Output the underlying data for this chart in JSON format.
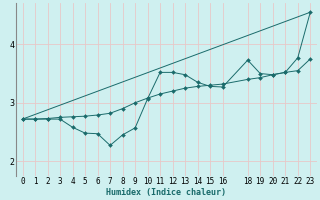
{
  "title": "",
  "xlabel": "Humidex (Indice chaleur)",
  "bg_color": "#cff0f0",
  "line_color": "#1a6b6b",
  "grid_color": "#e8c8c8",
  "xlim": [
    -0.5,
    23.5
  ],
  "ylim": [
    1.75,
    4.7
  ],
  "xticks": [
    0,
    1,
    2,
    3,
    4,
    5,
    6,
    7,
    8,
    9,
    10,
    11,
    12,
    13,
    14,
    15,
    16,
    18,
    19,
    20,
    21,
    22,
    23
  ],
  "yticks": [
    2,
    3,
    4
  ],
  "curve1_x": [
    0,
    1,
    2,
    3,
    4,
    5,
    6,
    7,
    8,
    9,
    10,
    11,
    12,
    13,
    14,
    15,
    16,
    18,
    19,
    20,
    21,
    22,
    23
  ],
  "curve1_y": [
    2.72,
    2.72,
    2.72,
    2.72,
    2.58,
    2.48,
    2.47,
    2.27,
    2.45,
    2.57,
    3.07,
    3.52,
    3.52,
    3.48,
    3.35,
    3.28,
    3.27,
    3.73,
    3.5,
    3.48,
    3.52,
    3.77,
    4.55
  ],
  "curve2_x": [
    0,
    1,
    2,
    3,
    4,
    5,
    6,
    7,
    8,
    9,
    10,
    11,
    12,
    13,
    14,
    15,
    16,
    18,
    19,
    20,
    21,
    22,
    23
  ],
  "curve2_y": [
    2.72,
    2.72,
    2.73,
    2.75,
    2.76,
    2.77,
    2.79,
    2.82,
    2.9,
    3.0,
    3.08,
    3.15,
    3.2,
    3.25,
    3.28,
    3.3,
    3.32,
    3.4,
    3.43,
    3.48,
    3.52,
    3.55,
    3.75
  ],
  "curve3_x": [
    0,
    23
  ],
  "curve3_y": [
    2.72,
    4.55
  ],
  "xlabel_fontsize": 6.0,
  "tick_fontsize": 5.5,
  "ytick_fontsize": 6.0
}
